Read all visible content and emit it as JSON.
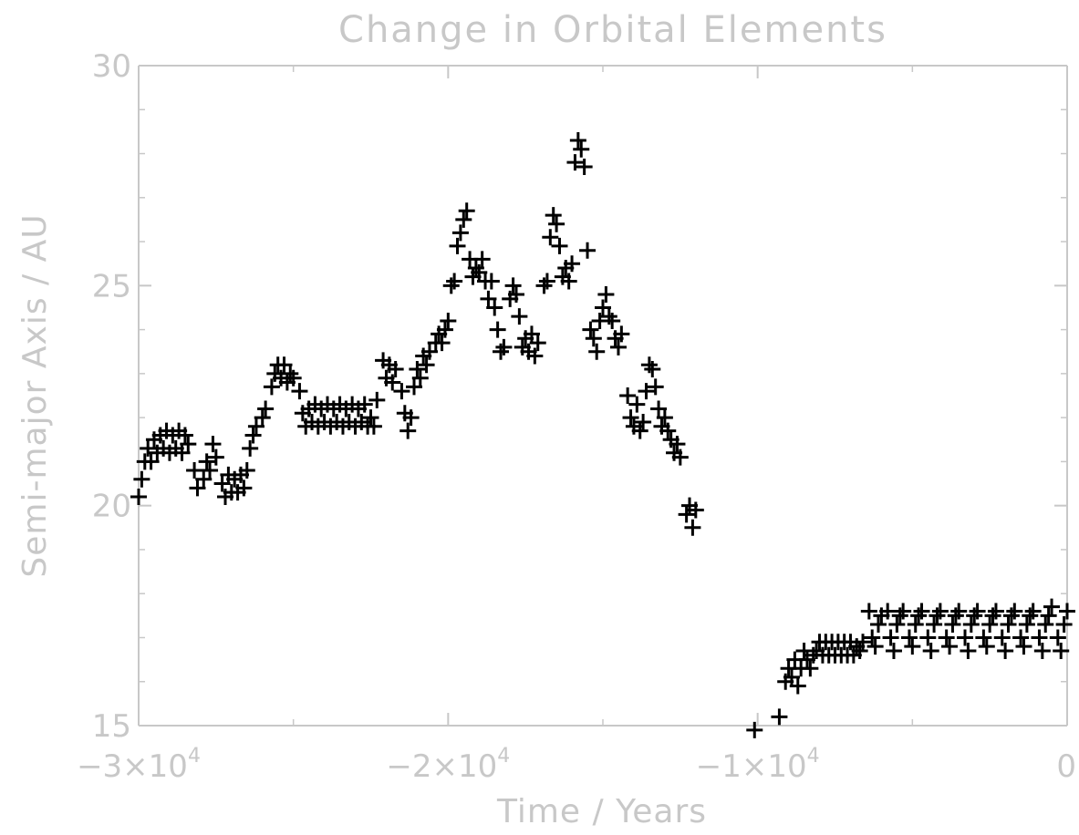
{
  "chart_data": {
    "type": "scatter",
    "title": "Change in Orbital Elements",
    "xlabel": "Time / Years",
    "ylabel": "Semi-major Axis / AU",
    "xlim": [
      -30000,
      0
    ],
    "ylim": [
      15,
      30
    ],
    "xticks": [
      {
        "value": -30000,
        "base": "−3×10",
        "exp": "4"
      },
      {
        "value": -20000,
        "base": "−2×10",
        "exp": "4"
      },
      {
        "value": -10000,
        "base": "−1×10",
        "exp": "4"
      },
      {
        "value": 0,
        "base": "0",
        "exp": ""
      }
    ],
    "yticks": [
      15,
      20,
      25,
      30
    ],
    "grid": false,
    "marker": "plus",
    "colors": {
      "axes": "#c8c8c8",
      "points": "#000000",
      "background": "#ffffff"
    },
    "series": [
      {
        "points": [
          [
            -30000,
            20.2
          ],
          [
            -29900,
            20.6
          ],
          [
            -29800,
            21.0
          ],
          [
            -29700,
            21.3
          ],
          [
            -29600,
            21.0
          ],
          [
            -29500,
            21.5
          ],
          [
            -29400,
            21.2
          ],
          [
            -29300,
            21.6
          ],
          [
            -29200,
            21.3
          ],
          [
            -29100,
            21.7
          ],
          [
            -29000,
            21.2
          ],
          [
            -28900,
            21.6
          ],
          [
            -28800,
            21.3
          ],
          [
            -28700,
            21.7
          ],
          [
            -28600,
            21.2
          ],
          [
            -28500,
            21.6
          ],
          [
            -28400,
            21.4
          ],
          [
            -28200,
            20.8
          ],
          [
            -28100,
            20.4
          ],
          [
            -27900,
            20.6
          ],
          [
            -27800,
            21.0
          ],
          [
            -27700,
            20.8
          ],
          [
            -27600,
            21.4
          ],
          [
            -27500,
            21.1
          ],
          [
            -27300,
            20.5
          ],
          [
            -27200,
            20.2
          ],
          [
            -27100,
            20.7
          ],
          [
            -27000,
            20.3
          ],
          [
            -26900,
            20.6
          ],
          [
            -26800,
            20.3
          ],
          [
            -26700,
            20.7
          ],
          [
            -26600,
            20.4
          ],
          [
            -26500,
            20.8
          ],
          [
            -26400,
            21.3
          ],
          [
            -26300,
            21.6
          ],
          [
            -26200,
            21.8
          ],
          [
            -26000,
            22.0
          ],
          [
            -25900,
            22.2
          ],
          [
            -25700,
            22.7
          ],
          [
            -25600,
            23.0
          ],
          [
            -25500,
            23.2
          ],
          [
            -25400,
            22.9
          ],
          [
            -25300,
            23.2
          ],
          [
            -25200,
            22.8
          ],
          [
            -25100,
            23.0
          ],
          [
            -25000,
            22.9
          ],
          [
            -24800,
            22.6
          ],
          [
            -24700,
            22.1
          ],
          [
            -24600,
            21.8
          ],
          [
            -24500,
            22.2
          ],
          [
            -24400,
            21.9
          ],
          [
            -24300,
            22.3
          ],
          [
            -24200,
            21.8
          ],
          [
            -24100,
            22.2
          ],
          [
            -24000,
            21.9
          ],
          [
            -23900,
            22.3
          ],
          [
            -23800,
            21.8
          ],
          [
            -23700,
            22.2
          ],
          [
            -23600,
            21.9
          ],
          [
            -23500,
            22.3
          ],
          [
            -23400,
            21.8
          ],
          [
            -23300,
            22.2
          ],
          [
            -23200,
            21.9
          ],
          [
            -23100,
            22.3
          ],
          [
            -23000,
            21.8
          ],
          [
            -22900,
            22.2
          ],
          [
            -22800,
            21.9
          ],
          [
            -22700,
            22.3
          ],
          [
            -22600,
            21.8
          ],
          [
            -22500,
            22.0
          ],
          [
            -22400,
            21.8
          ],
          [
            -22300,
            22.4
          ],
          [
            -22100,
            23.3
          ],
          [
            -22000,
            22.9
          ],
          [
            -21900,
            23.2
          ],
          [
            -21800,
            22.8
          ],
          [
            -21700,
            23.1
          ],
          [
            -21500,
            22.6
          ],
          [
            -21400,
            22.1
          ],
          [
            -21300,
            21.7
          ],
          [
            -21200,
            22.0
          ],
          [
            -21100,
            22.7
          ],
          [
            -21000,
            23.1
          ],
          [
            -20900,
            22.9
          ],
          [
            -20800,
            23.4
          ],
          [
            -20700,
            23.2
          ],
          [
            -20600,
            23.5
          ],
          [
            -20400,
            23.7
          ],
          [
            -20300,
            23.9
          ],
          [
            -20200,
            23.7
          ],
          [
            -20100,
            24.0
          ],
          [
            -20000,
            24.2
          ],
          [
            -19900,
            25.0
          ],
          [
            -19800,
            25.1
          ],
          [
            -19700,
            25.9
          ],
          [
            -19600,
            26.2
          ],
          [
            -19500,
            26.5
          ],
          [
            -19400,
            26.7
          ],
          [
            -19300,
            25.6
          ],
          [
            -19200,
            25.2
          ],
          [
            -19100,
            25.4
          ],
          [
            -19000,
            25.3
          ],
          [
            -18900,
            25.6
          ],
          [
            -18800,
            25.1
          ],
          [
            -18700,
            24.7
          ],
          [
            -18600,
            25.1
          ],
          [
            -18500,
            24.5
          ],
          [
            -18400,
            24.0
          ],
          [
            -18300,
            23.5
          ],
          [
            -18200,
            23.6
          ],
          [
            -18000,
            24.7
          ],
          [
            -17900,
            25.0
          ],
          [
            -17800,
            24.8
          ],
          [
            -17700,
            24.3
          ],
          [
            -17600,
            23.6
          ],
          [
            -17500,
            23.8
          ],
          [
            -17400,
            23.5
          ],
          [
            -17300,
            23.9
          ],
          [
            -17200,
            23.4
          ],
          [
            -17100,
            23.7
          ],
          [
            -16900,
            25.0
          ],
          [
            -16800,
            25.1
          ],
          [
            -16700,
            26.1
          ],
          [
            -16600,
            26.6
          ],
          [
            -16500,
            26.4
          ],
          [
            -16400,
            25.9
          ],
          [
            -16300,
            25.2
          ],
          [
            -16200,
            25.4
          ],
          [
            -16100,
            25.1
          ],
          [
            -16000,
            25.5
          ],
          [
            -15900,
            27.8
          ],
          [
            -15800,
            28.3
          ],
          [
            -15700,
            28.1
          ],
          [
            -15600,
            27.7
          ],
          [
            -15500,
            25.8
          ],
          [
            -15400,
            24.0
          ],
          [
            -15300,
            23.8
          ],
          [
            -15200,
            23.5
          ],
          [
            -15100,
            24.2
          ],
          [
            -15000,
            24.5
          ],
          [
            -14900,
            24.8
          ],
          [
            -14800,
            24.3
          ],
          [
            -14700,
            24.2
          ],
          [
            -14600,
            23.8
          ],
          [
            -14500,
            23.6
          ],
          [
            -14400,
            23.9
          ],
          [
            -14200,
            22.5
          ],
          [
            -14100,
            22.0
          ],
          [
            -14000,
            21.8
          ],
          [
            -13900,
            22.3
          ],
          [
            -13800,
            21.7
          ],
          [
            -13700,
            21.9
          ],
          [
            -13600,
            22.6
          ],
          [
            -13500,
            23.2
          ],
          [
            -13400,
            23.1
          ],
          [
            -13300,
            22.7
          ],
          [
            -13200,
            22.2
          ],
          [
            -13100,
            21.8
          ],
          [
            -13000,
            22.0
          ],
          [
            -12900,
            21.7
          ],
          [
            -12800,
            21.5
          ],
          [
            -12700,
            21.2
          ],
          [
            -12600,
            21.4
          ],
          [
            -12500,
            21.1
          ],
          [
            -12300,
            19.8
          ],
          [
            -12200,
            20.0
          ],
          [
            -12100,
            19.5
          ],
          [
            -12000,
            19.9
          ],
          [
            -10100,
            14.9
          ],
          [
            -9300,
            15.2
          ],
          [
            -9100,
            16.0
          ],
          [
            -9000,
            16.3
          ],
          [
            -8900,
            16.1
          ],
          [
            -8800,
            16.5
          ],
          [
            -8700,
            15.9
          ],
          [
            -8600,
            16.3
          ],
          [
            -8500,
            16.7
          ],
          [
            -8400,
            16.5
          ],
          [
            -8300,
            16.3
          ],
          [
            -8200,
            16.6
          ],
          [
            -8100,
            16.7
          ],
          [
            -8000,
            16.9
          ],
          [
            -7900,
            16.6
          ],
          [
            -7800,
            16.9
          ],
          [
            -7700,
            16.6
          ],
          [
            -7600,
            16.9
          ],
          [
            -7500,
            16.6
          ],
          [
            -7400,
            16.9
          ],
          [
            -7300,
            16.6
          ],
          [
            -7200,
            16.9
          ],
          [
            -7100,
            16.6
          ],
          [
            -7000,
            16.9
          ],
          [
            -6900,
            16.6
          ],
          [
            -6800,
            16.8
          ],
          [
            -6700,
            16.7
          ],
          [
            -6600,
            16.9
          ],
          [
            -6400,
            17.6
          ],
          [
            -6300,
            17.0
          ],
          [
            -6200,
            16.8
          ],
          [
            -6100,
            17.3
          ],
          [
            -6000,
            17.5
          ],
          [
            -5800,
            17.6
          ],
          [
            -5700,
            17.0
          ],
          [
            -5600,
            16.7
          ],
          [
            -5500,
            17.3
          ],
          [
            -5400,
            17.5
          ],
          [
            -5300,
            17.6
          ],
          [
            -5100,
            17.0
          ],
          [
            -5000,
            16.8
          ],
          [
            -4900,
            17.3
          ],
          [
            -4800,
            17.5
          ],
          [
            -4700,
            17.6
          ],
          [
            -4500,
            17.0
          ],
          [
            -4400,
            16.7
          ],
          [
            -4300,
            17.3
          ],
          [
            -4200,
            17.5
          ],
          [
            -4100,
            17.6
          ],
          [
            -3900,
            17.0
          ],
          [
            -3800,
            16.8
          ],
          [
            -3700,
            17.3
          ],
          [
            -3600,
            17.5
          ],
          [
            -3500,
            17.6
          ],
          [
            -3300,
            17.0
          ],
          [
            -3200,
            16.7
          ],
          [
            -3100,
            17.3
          ],
          [
            -3000,
            17.5
          ],
          [
            -2900,
            17.6
          ],
          [
            -2700,
            17.0
          ],
          [
            -2600,
            16.8
          ],
          [
            -2500,
            17.3
          ],
          [
            -2400,
            17.5
          ],
          [
            -2300,
            17.6
          ],
          [
            -2100,
            17.0
          ],
          [
            -2000,
            16.7
          ],
          [
            -1900,
            17.3
          ],
          [
            -1800,
            17.5
          ],
          [
            -1700,
            17.6
          ],
          [
            -1500,
            17.0
          ],
          [
            -1400,
            16.8
          ],
          [
            -1300,
            17.3
          ],
          [
            -1200,
            17.5
          ],
          [
            -1100,
            17.6
          ],
          [
            -900,
            17.0
          ],
          [
            -800,
            16.7
          ],
          [
            -700,
            17.3
          ],
          [
            -600,
            17.5
          ],
          [
            -500,
            17.7
          ],
          [
            -300,
            17.0
          ],
          [
            -200,
            16.7
          ],
          [
            -100,
            17.3
          ],
          [
            0,
            17.6
          ]
        ]
      }
    ]
  }
}
